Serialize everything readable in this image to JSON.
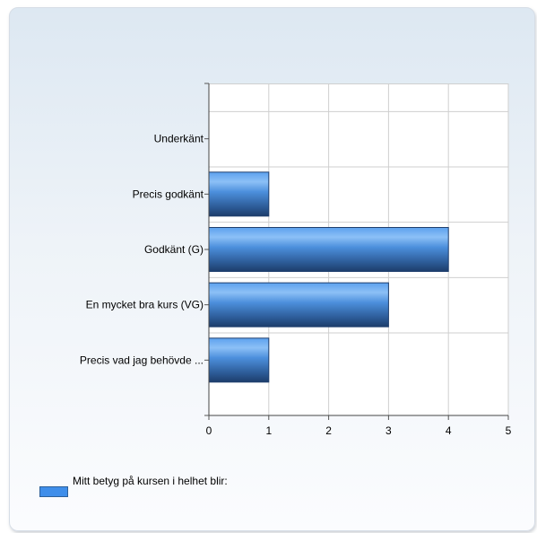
{
  "chart_data": {
    "type": "bar",
    "orientation": "horizontal",
    "categories": [
      "Underkänt",
      "Precis godkänt",
      "Godkänt (G)",
      "En mycket bra kurs (VG)",
      "Precis vad jag behövde ..."
    ],
    "series": [
      {
        "name": "Mitt betyg på kursen i helhet blir:",
        "values": [
          0,
          1,
          4,
          3,
          1
        ],
        "color": "#3f8eea"
      }
    ],
    "xlim": [
      0,
      5
    ],
    "x_ticks": [
      "0",
      "1",
      "2",
      "3",
      "4",
      "5"
    ],
    "grid": true,
    "legend_position": "bottom-left"
  }
}
